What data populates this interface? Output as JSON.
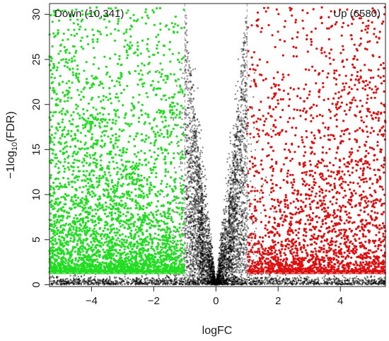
{
  "chart_data": {
    "type": "scatter",
    "title": "",
    "xlabel": "logFC",
    "ylabel": "−log10(FDR)",
    "ylabel_parts": {
      "prefix": "−1log",
      "sub": "10",
      "suffix": "(FDR)"
    },
    "xlim": [
      -5.35,
      5.45
    ],
    "ylim": [
      -0.2,
      31.2
    ],
    "xticks": [
      -4,
      -2,
      0,
      2,
      4
    ],
    "xtick_labels": [
      "−4",
      "−2",
      "0",
      "2",
      "4"
    ],
    "yticks": [
      0,
      5,
      10,
      15,
      20,
      25,
      30
    ],
    "ytick_labels": [
      "0",
      "5",
      "10",
      "15",
      "20",
      "25",
      "30"
    ],
    "grid": false,
    "thresholds": {
      "logfc": [
        -1,
        1
      ],
      "fdr_line_y": 1.3
    },
    "annotations": {
      "down": "Down (10,341)",
      "up": "Up (6580)"
    },
    "series": [
      {
        "name": "Down",
        "color": "#22dd22",
        "count": 10341,
        "x_range": [
          -5.35,
          -1
        ],
        "y_range": [
          1.3,
          31
        ]
      },
      {
        "name": "Up",
        "color": "#dd1111",
        "count": 6580,
        "x_range": [
          1,
          5.45
        ],
        "y_range": [
          1.3,
          31
        ]
      },
      {
        "name": "",
        "color": "#000000",
        "x_range": [
          -5.35,
          5.45
        ],
        "y_range": [
          0,
          31
        ]
      }
    ]
  }
}
